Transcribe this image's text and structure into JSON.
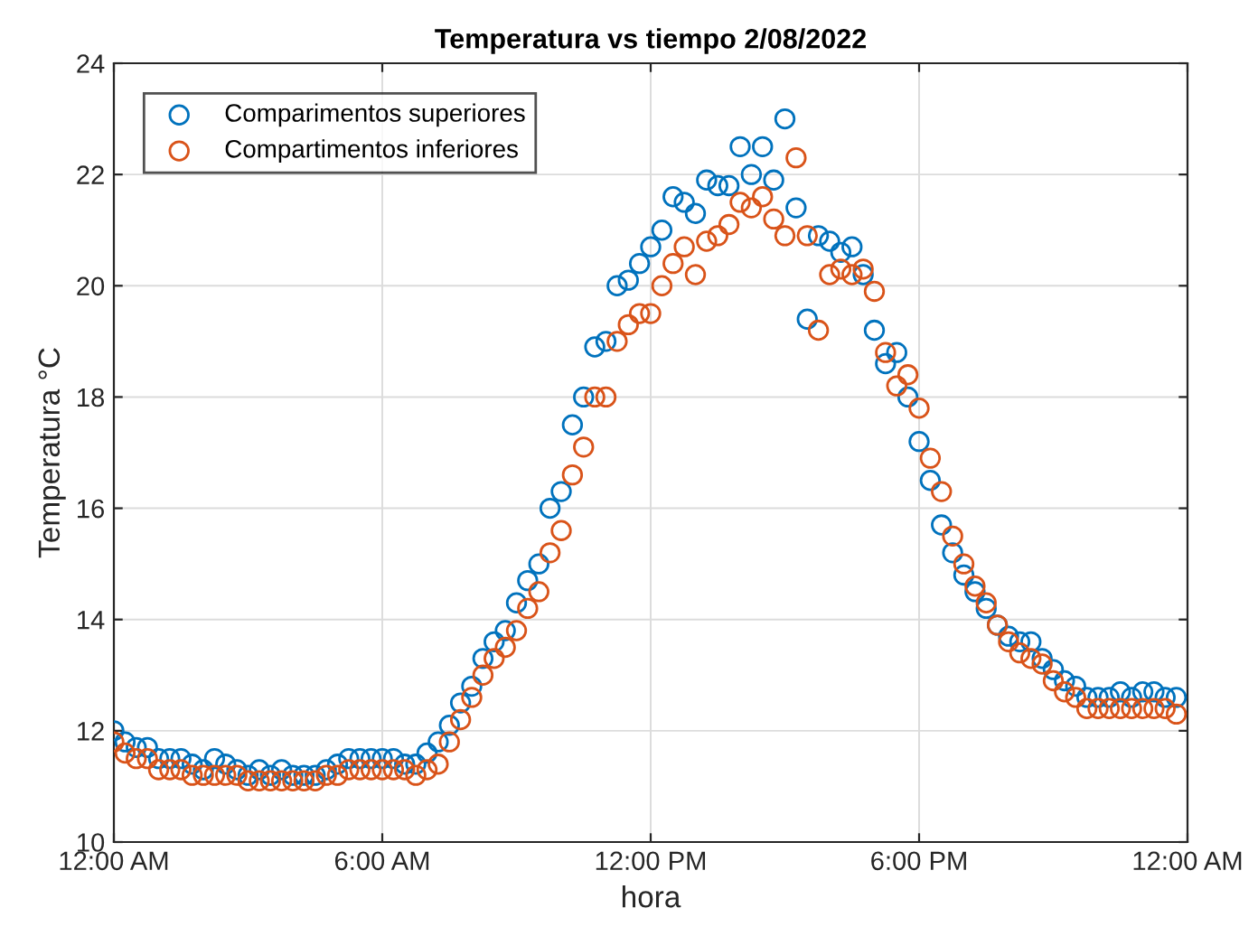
{
  "chart_data": {
    "type": "scatter",
    "title": "Temperatura vs tiempo 2/08/2022",
    "xlabel": "hora",
    "ylabel": "Temperatura °C",
    "x": [
      0,
      0.25,
      0.5,
      0.75,
      1,
      1.25,
      1.5,
      1.75,
      2,
      2.25,
      2.5,
      2.75,
      3,
      3.25,
      3.5,
      3.75,
      4,
      4.25,
      4.5,
      4.75,
      5,
      5.25,
      5.5,
      5.75,
      6,
      6.25,
      6.5,
      6.75,
      7,
      7.25,
      7.5,
      7.75,
      8,
      8.25,
      8.5,
      8.75,
      9,
      9.25,
      9.5,
      9.75,
      10,
      10.25,
      10.5,
      10.75,
      11,
      11.25,
      11.5,
      11.75,
      12,
      12.25,
      12.5,
      12.75,
      13,
      13.25,
      13.5,
      13.75,
      14,
      14.25,
      14.5,
      14.75,
      15,
      15.25,
      15.5,
      15.75,
      16,
      16.25,
      16.5,
      16.75,
      17,
      17.25,
      17.5,
      17.75,
      18,
      18.25,
      18.5,
      18.75,
      19,
      19.25,
      19.5,
      19.75,
      20,
      20.25,
      20.5,
      20.75,
      21,
      21.25,
      21.5,
      21.75,
      22,
      22.25,
      22.5,
      22.75,
      23,
      23.25,
      23.5,
      23.75
    ],
    "series": [
      {
        "name": "Comparimentos superiores",
        "color": "#0072bd",
        "values": [
          12.0,
          11.8,
          11.7,
          11.7,
          11.5,
          11.5,
          11.5,
          11.4,
          11.3,
          11.5,
          11.4,
          11.3,
          11.2,
          11.3,
          11.2,
          11.3,
          11.2,
          11.2,
          11.2,
          11.3,
          11.4,
          11.5,
          11.5,
          11.5,
          11.5,
          11.5,
          11.4,
          11.4,
          11.6,
          11.8,
          12.1,
          12.5,
          12.8,
          13.3,
          13.6,
          13.8,
          14.3,
          14.7,
          15.0,
          16.0,
          16.3,
          17.5,
          18.0,
          18.9,
          19.0,
          20.0,
          20.1,
          20.4,
          20.7,
          21.0,
          21.6,
          21.5,
          21.3,
          21.9,
          21.8,
          21.8,
          22.5,
          22.0,
          22.5,
          21.9,
          23.0,
          21.4,
          19.4,
          20.9,
          20.8,
          20.6,
          20.7,
          20.2,
          19.2,
          18.6,
          18.8,
          18.0,
          17.2,
          16.5,
          15.7,
          15.2,
          14.8,
          14.5,
          14.2,
          13.9,
          13.7,
          13.6,
          13.6,
          13.3,
          13.1,
          12.9,
          12.8,
          12.6,
          12.6,
          12.6,
          12.7,
          12.6,
          12.7,
          12.7,
          12.6,
          12.6
        ]
      },
      {
        "name": "Compartimentos inferiores",
        "color": "#d95319",
        "values": [
          11.8,
          11.6,
          11.5,
          11.5,
          11.3,
          11.3,
          11.3,
          11.2,
          11.2,
          11.2,
          11.2,
          11.2,
          11.1,
          11.1,
          11.1,
          11.1,
          11.1,
          11.1,
          11.1,
          11.2,
          11.2,
          11.3,
          11.3,
          11.3,
          11.3,
          11.3,
          11.3,
          11.2,
          11.3,
          11.4,
          11.8,
          12.2,
          12.6,
          13.0,
          13.3,
          13.5,
          13.8,
          14.2,
          14.5,
          15.2,
          15.6,
          16.6,
          17.1,
          18.0,
          18.0,
          19.0,
          19.3,
          19.5,
          19.5,
          20.0,
          20.4,
          20.7,
          20.2,
          20.8,
          20.9,
          21.1,
          21.5,
          21.4,
          21.6,
          21.2,
          20.9,
          22.3,
          20.9,
          19.2,
          20.2,
          20.3,
          20.2,
          20.3,
          19.9,
          18.8,
          18.2,
          18.4,
          17.8,
          16.9,
          16.3,
          15.5,
          15.0,
          14.6,
          14.3,
          13.9,
          13.6,
          13.4,
          13.3,
          13.2,
          12.9,
          12.7,
          12.6,
          12.4,
          12.4,
          12.4,
          12.4,
          12.4,
          12.4,
          12.4,
          12.4,
          12.3
        ]
      }
    ],
    "xlim": [
      0,
      24
    ],
    "xticks": [
      {
        "value": 0,
        "label": "12:00 AM"
      },
      {
        "value": 6,
        "label": "6:00 AM"
      },
      {
        "value": 12,
        "label": "12:00 PM"
      },
      {
        "value": 18,
        "label": "6:00 PM"
      },
      {
        "value": 24,
        "label": "12:00 AM"
      }
    ],
    "ylim": [
      10,
      24
    ],
    "yticks": [
      10,
      12,
      14,
      16,
      18,
      20,
      22,
      24
    ],
    "grid": true,
    "legend": "top left",
    "marker": "circle"
  }
}
